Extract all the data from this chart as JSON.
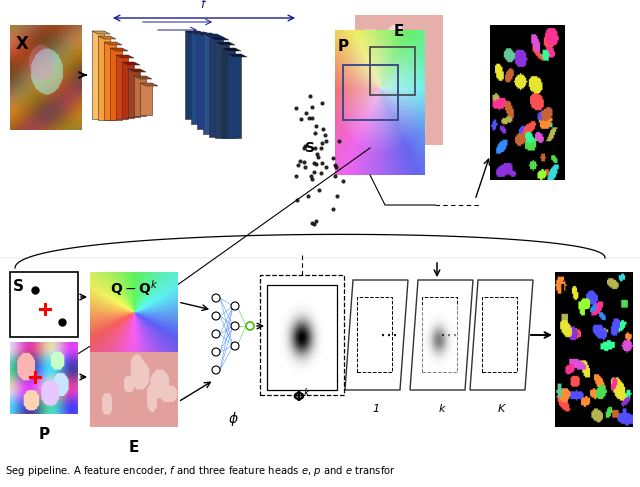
{
  "bg_color": "#ffffff",
  "caption": "Seg pipeline. A feature encoder, $f$ and three feature heads $e$, $p$ and $e$ transfor",
  "enc_warm_colors": [
    "#FBBF6A",
    "#F8A040",
    "#F58020",
    "#E86010",
    "#D04010",
    "#B83010",
    "#A04020",
    "#C07040",
    "#D08050"
  ],
  "enc_cool_colors": [
    "#1a3a6e",
    "#1e4a85",
    "#224090",
    "#2a508a",
    "#1c3c70",
    "#263c60",
    "#1a3455",
    "#8a7050",
    "#9a8060",
    "#6a6040"
  ],
  "frame_color": "#ffffff",
  "frame_edge": "#222222"
}
